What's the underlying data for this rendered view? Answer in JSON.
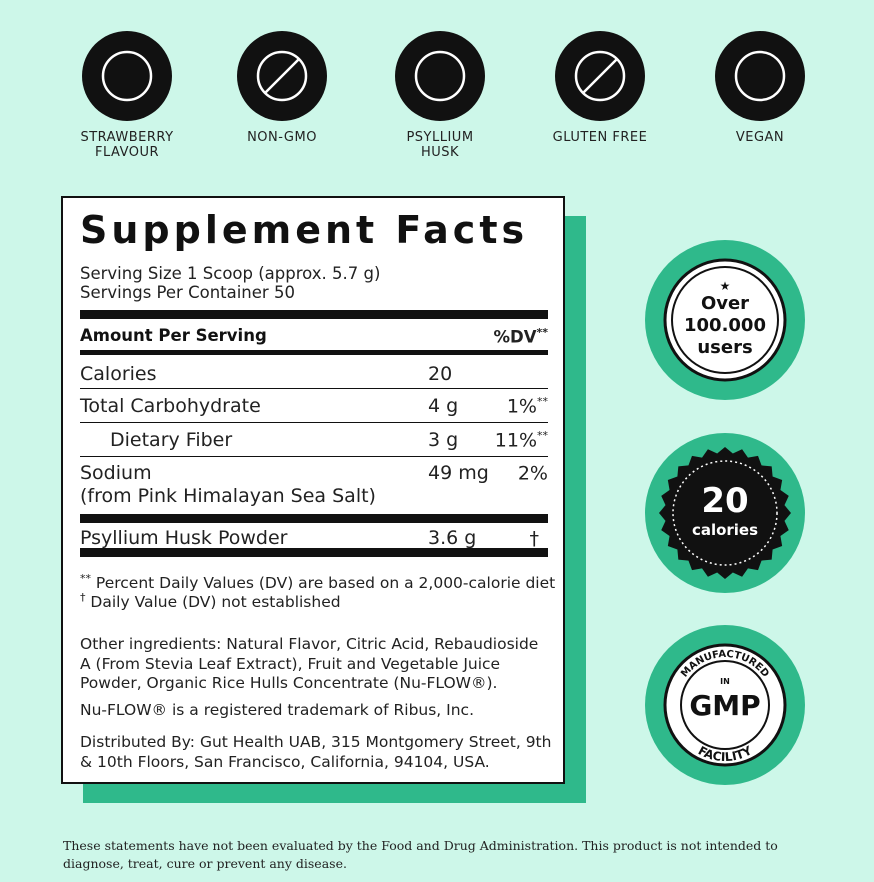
{
  "icons": [
    {
      "lines": [
        "STRAWBERRY",
        "FLAVOUR"
      ]
    },
    {
      "lines": [
        "NON-GMO"
      ]
    },
    {
      "lines": [
        "PSYLLIUM",
        "HUSK"
      ]
    },
    {
      "lines": [
        "GLUTEN FREE"
      ]
    },
    {
      "lines": [
        "VEGAN"
      ]
    }
  ],
  "facts": {
    "title": "Supplement Facts",
    "serving_size": "Serving Size 1 Scoop (approx. 5.7 g)",
    "servings": "Servings Per Container 50",
    "amount_header": "Amount Per Serving",
    "dv_header": "%DV",
    "dv_mark": "**",
    "rows": [
      {
        "name": [
          "Calories"
        ],
        "amount": "20",
        "dv": "",
        "mark": ""
      },
      {
        "name": [
          "Total Carbohydrate"
        ],
        "amount": "4 g",
        "dv": "1%",
        "mark": "**"
      },
      {
        "name": [
          "Dietary Fiber"
        ],
        "amount": "3 g",
        "dv": "11%",
        "mark": "**",
        "indent": true
      },
      {
        "name": [
          "Sodium",
          "(from Pink Himalayan Sea Salt)"
        ],
        "amount": "49 mg",
        "dv": "2%",
        "mark": ""
      },
      {
        "name": [
          "Psyllium Husk Powder"
        ],
        "amount": "3.6 g",
        "dv": "†",
        "mark": ""
      }
    ],
    "footnotes": [
      {
        "mark": "**",
        "text": " Percent Daily Values (DV) are based on a 2,000-calorie diet"
      },
      {
        "mark": "†",
        "text": " Daily Value (DV) not established"
      }
    ],
    "other_label": "Other ingredients:",
    "other_text": " Natural Flavor, Citric Acid, Rebaudioside A (From Stevia Leaf Extract), Fruit and Vegetable Juice Powder, Organic Rice Hulls Concentrate (Nu-FLOW®).",
    "trademark": "Nu-FLOW® is a registered trademark of Ribus, Inc.",
    "distributed": "Distributed By: Gut Health UAB, 315 Montgomery Street, 9th & 10th Floors, San Francisco, California, 94104, USA."
  },
  "badges": [
    {
      "lines": [
        "Over",
        "100.000",
        "users"
      ]
    },
    {
      "lines": [
        "20",
        "calories"
      ]
    },
    {
      "top": "MANUFACTURED",
      "middle": "IN",
      "main": "GMP",
      "bottom": "FACILITY"
    }
  ],
  "disclaimer": "These statements have not been evaluated by the Food and Drug Administration. This product is not intended to diagnose, treat, cure or prevent any disease."
}
